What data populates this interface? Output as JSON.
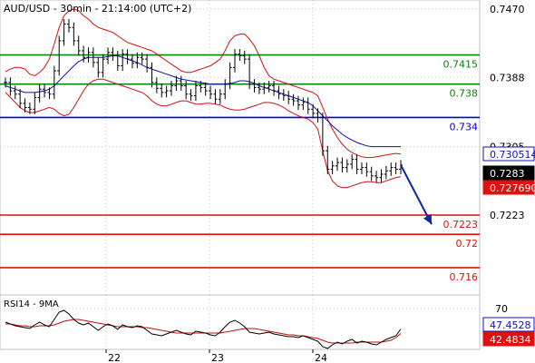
{
  "header": {
    "title": "AUD/USD - 30min - 21:14:00 (UTC+2)"
  },
  "colors": {
    "background": "#ffffff",
    "grid": "#c8c8c8",
    "price": "#000000",
    "bollinger": "#d01010",
    "moving_average": "#1010b0",
    "support": "#e01010",
    "resistance_green": "#108010",
    "pivot": "#0000d0",
    "forecast_arrow": "#0a2aa0",
    "rsi": "#000000",
    "rsi_ma": "#c01010"
  },
  "chart_data": [
    {
      "type": "line",
      "title": "AUD/USD - 30min - 21:14:00 (UTC+2)",
      "ylim": [
        0.7145,
        0.7485
      ],
      "y_ticks": [
        {
          "value": 0.747,
          "label": "0.7470"
        },
        {
          "value": 0.7388,
          "label": "0.7388"
        },
        {
          "value": 0.7305,
          "label": "0.7305"
        },
        {
          "value": 0.7223,
          "label": "0.7223"
        }
      ],
      "x_ticks": [
        "22",
        "23",
        "24"
      ],
      "current_labels": [
        {
          "value": 0.7305,
          "label": "0.730514",
          "style": "blue"
        },
        {
          "value": 0.7283,
          "label": "0.7283",
          "style": "black"
        },
        {
          "value": 0.7276,
          "label": "0.727690",
          "style": "red"
        }
      ],
      "levels": [
        {
          "value": 0.7415,
          "label": "0.7415",
          "kind": "resistance"
        },
        {
          "value": 0.738,
          "label": "0.738",
          "kind": "resistance"
        },
        {
          "value": 0.734,
          "label": "0.734",
          "kind": "pivot"
        },
        {
          "value": 0.7223,
          "label": "0.7223",
          "kind": "support"
        },
        {
          "value": 0.72,
          "label": "0.72",
          "kind": "support"
        },
        {
          "value": 0.716,
          "label": "0.716",
          "kind": "support"
        }
      ],
      "series": [
        {
          "values": [
            0.7382,
            0.7372,
            0.7368,
            0.7357,
            0.7352,
            0.735,
            0.7364,
            0.7374,
            0.737,
            0.7368,
            0.7396,
            0.7432,
            0.7452,
            0.7448,
            0.7432,
            0.742,
            0.7412,
            0.7418,
            0.7406,
            0.7394,
            0.741,
            0.7418,
            0.7414,
            0.7402,
            0.7416,
            0.741,
            0.7405,
            0.7412,
            0.741,
            0.74,
            0.7382,
            0.7375,
            0.737,
            0.7372,
            0.7378,
            0.7384,
            0.7378,
            0.7368,
            0.7366,
            0.7378,
            0.7376,
            0.7372,
            0.7368,
            0.7362,
            0.7368,
            0.738,
            0.74,
            0.7416,
            0.7414,
            0.741,
            0.738,
            0.7376,
            0.7374,
            0.7376,
            0.7378,
            0.7372,
            0.7368,
            0.7366,
            0.7362,
            0.736,
            0.7355,
            0.7358,
            0.735,
            0.7345,
            0.734,
            0.73,
            0.7278,
            0.7282,
            0.7286,
            0.728,
            0.7284,
            0.729,
            0.7278,
            0.728,
            0.7275,
            0.727,
            0.7268,
            0.7272,
            0.7276,
            0.728,
            0.7278,
            0.7283
          ]
        },
        {
          "name": "upper band",
          "values": [
            0.7395,
            0.7398,
            0.74,
            0.74,
            0.7398,
            0.7392,
            0.739,
            0.7394,
            0.74,
            0.741,
            0.7428,
            0.7448,
            0.7462,
            0.7468,
            0.747,
            0.7468,
            0.7462,
            0.7458,
            0.7452,
            0.7448,
            0.7446,
            0.7444,
            0.7442,
            0.7438,
            0.7434,
            0.743,
            0.7428,
            0.7426,
            0.7424,
            0.7422,
            0.742,
            0.7416,
            0.7412,
            0.7408,
            0.7404,
            0.74,
            0.7396,
            0.7394,
            0.7394,
            0.7396,
            0.7398,
            0.74,
            0.7402,
            0.7406,
            0.741,
            0.742,
            0.7432,
            0.7438,
            0.744,
            0.744,
            0.7434,
            0.7426,
            0.7414,
            0.74,
            0.739,
            0.7386,
            0.7384,
            0.7382,
            0.738,
            0.7378,
            0.7376,
            0.7374,
            0.7372,
            0.737,
            0.7366,
            0.7352,
            0.7338,
            0.7326,
            0.7316,
            0.7308,
            0.7302,
            0.7298,
            0.7295,
            0.7293,
            0.7292,
            0.7292,
            0.7293,
            0.7294,
            0.7295,
            0.7296,
            0.7297,
            0.7296
          ]
        },
        {
          "name": "lower band",
          "values": [
            0.737,
            0.7364,
            0.7358,
            0.7352,
            0.7348,
            0.7346,
            0.7346,
            0.7348,
            0.735,
            0.7352,
            0.735,
            0.7345,
            0.7342,
            0.7344,
            0.7352,
            0.7362,
            0.7372,
            0.738,
            0.7384,
            0.7386,
            0.7386,
            0.7384,
            0.7382,
            0.738,
            0.7378,
            0.7376,
            0.7374,
            0.7372,
            0.737,
            0.7366,
            0.736,
            0.7356,
            0.7354,
            0.7354,
            0.7356,
            0.7358,
            0.736,
            0.736,
            0.7358,
            0.7356,
            0.7356,
            0.7357,
            0.7357,
            0.7356,
            0.7355,
            0.7352,
            0.735,
            0.7349,
            0.7349,
            0.735,
            0.7352,
            0.7354,
            0.7356,
            0.7358,
            0.7358,
            0.7357,
            0.7355,
            0.7352,
            0.7348,
            0.7345,
            0.7342,
            0.734,
            0.7338,
            0.7334,
            0.7326,
            0.73,
            0.7276,
            0.7264,
            0.7258,
            0.7256,
            0.7256,
            0.7258,
            0.726,
            0.7262,
            0.7263,
            0.7263,
            0.7262,
            0.7262,
            0.7264,
            0.7266,
            0.7268,
            0.7269
          ]
        },
        {
          "name": "moving average",
          "values": [
            0.7378,
            0.7376,
            0.7374,
            0.7372,
            0.737,
            0.737,
            0.737,
            0.7371,
            0.7372,
            0.7374,
            0.7378,
            0.7384,
            0.739,
            0.7396,
            0.7402,
            0.7407,
            0.741,
            0.7412,
            0.7412,
            0.7412,
            0.7412,
            0.7413,
            0.7414,
            0.7414,
            0.7412,
            0.741,
            0.7408,
            0.7406,
            0.7403,
            0.74,
            0.7398,
            0.7396,
            0.7394,
            0.7392,
            0.739,
            0.7388,
            0.7386,
            0.7385,
            0.7384,
            0.7383,
            0.7382,
            0.7381,
            0.738,
            0.738,
            0.738,
            0.738,
            0.7381,
            0.7382,
            0.7384,
            0.7384,
            0.7383,
            0.7381,
            0.7378,
            0.7376,
            0.7374,
            0.7372,
            0.737,
            0.7368,
            0.7366,
            0.7364,
            0.7362,
            0.736,
            0.7358,
            0.7354,
            0.7348,
            0.7342,
            0.7336,
            0.733,
            0.7325,
            0.732,
            0.7316,
            0.7313,
            0.731,
            0.7308,
            0.7306,
            0.7305,
            0.7305,
            0.7305,
            0.7305,
            0.7305,
            0.7305,
            0.7305
          ]
        }
      ],
      "forecast_arrow": {
        "from": 0.7283,
        "to": 0.7212
      },
      "grid": true
    },
    {
      "type": "line",
      "title": "RSI14 - 9MA",
      "ylim": [
        20,
        80
      ],
      "y_ticks": [
        {
          "value": 70,
          "label": "70"
        }
      ],
      "current_labels": [
        {
          "value": 47.4528,
          "label": "47.4528",
          "style": "blue"
        },
        {
          "value": 42.4834,
          "label": "42.4834",
          "style": "red"
        }
      ],
      "series": [
        {
          "values": [
            55,
            53,
            51,
            50,
            49,
            48,
            52,
            55,
            52,
            50,
            58,
            66,
            68,
            64,
            58,
            54,
            52,
            54,
            50,
            46,
            50,
            53,
            51,
            47,
            52,
            50,
            49,
            51,
            50,
            46,
            42,
            41,
            40,
            42,
            44,
            46,
            44,
            42,
            41,
            45,
            44,
            43,
            41,
            40,
            44,
            50,
            55,
            57,
            54,
            50,
            44,
            43,
            42,
            43,
            44,
            42,
            41,
            40,
            39,
            39,
            38,
            40,
            38,
            36,
            34,
            28,
            26,
            30,
            33,
            31,
            34,
            36,
            32,
            34,
            33,
            31,
            30,
            33,
            36,
            38,
            40,
            47.4528
          ]
        },
        {
          "values": [
            53,
            53,
            52,
            51,
            51,
            50,
            50,
            51,
            51,
            51,
            52,
            54,
            56,
            57,
            58,
            58,
            57,
            56,
            55,
            54,
            53,
            52,
            51,
            50,
            50,
            50,
            50,
            50,
            49,
            49,
            48,
            47,
            46,
            45,
            44,
            43,
            43,
            43,
            43,
            43,
            43,
            43,
            43,
            43,
            43,
            44,
            45,
            46,
            47,
            48,
            48,
            48,
            47,
            46,
            45,
            44,
            43,
            42,
            41,
            41,
            40,
            40,
            39,
            38,
            37,
            35,
            33,
            32,
            32,
            32,
            32,
            32,
            33,
            33,
            33,
            33,
            33,
            33,
            34,
            35,
            38,
            42.4834
          ]
        }
      ],
      "grid": true
    }
  ]
}
